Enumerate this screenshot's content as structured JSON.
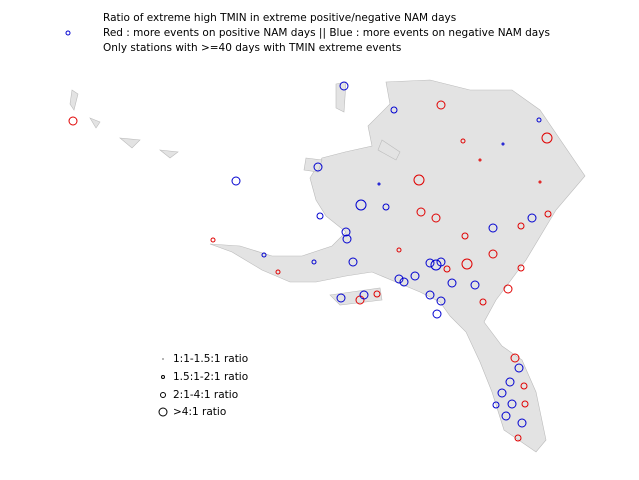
{
  "header": {
    "lines": [
      "Ratio of extreme high TMIN in extreme positive/negative NAM days",
      "Red : more events on positive NAM days || Blue : more events on negative NAM days",
      "Only stations with >=40 days with TMIN extreme events"
    ]
  },
  "legend": {
    "items": [
      "1:1-1.5:1 ratio",
      "1.5:1-2:1 ratio",
      "2:1-4:1 ratio",
      ">4:1 ratio"
    ]
  }
}
